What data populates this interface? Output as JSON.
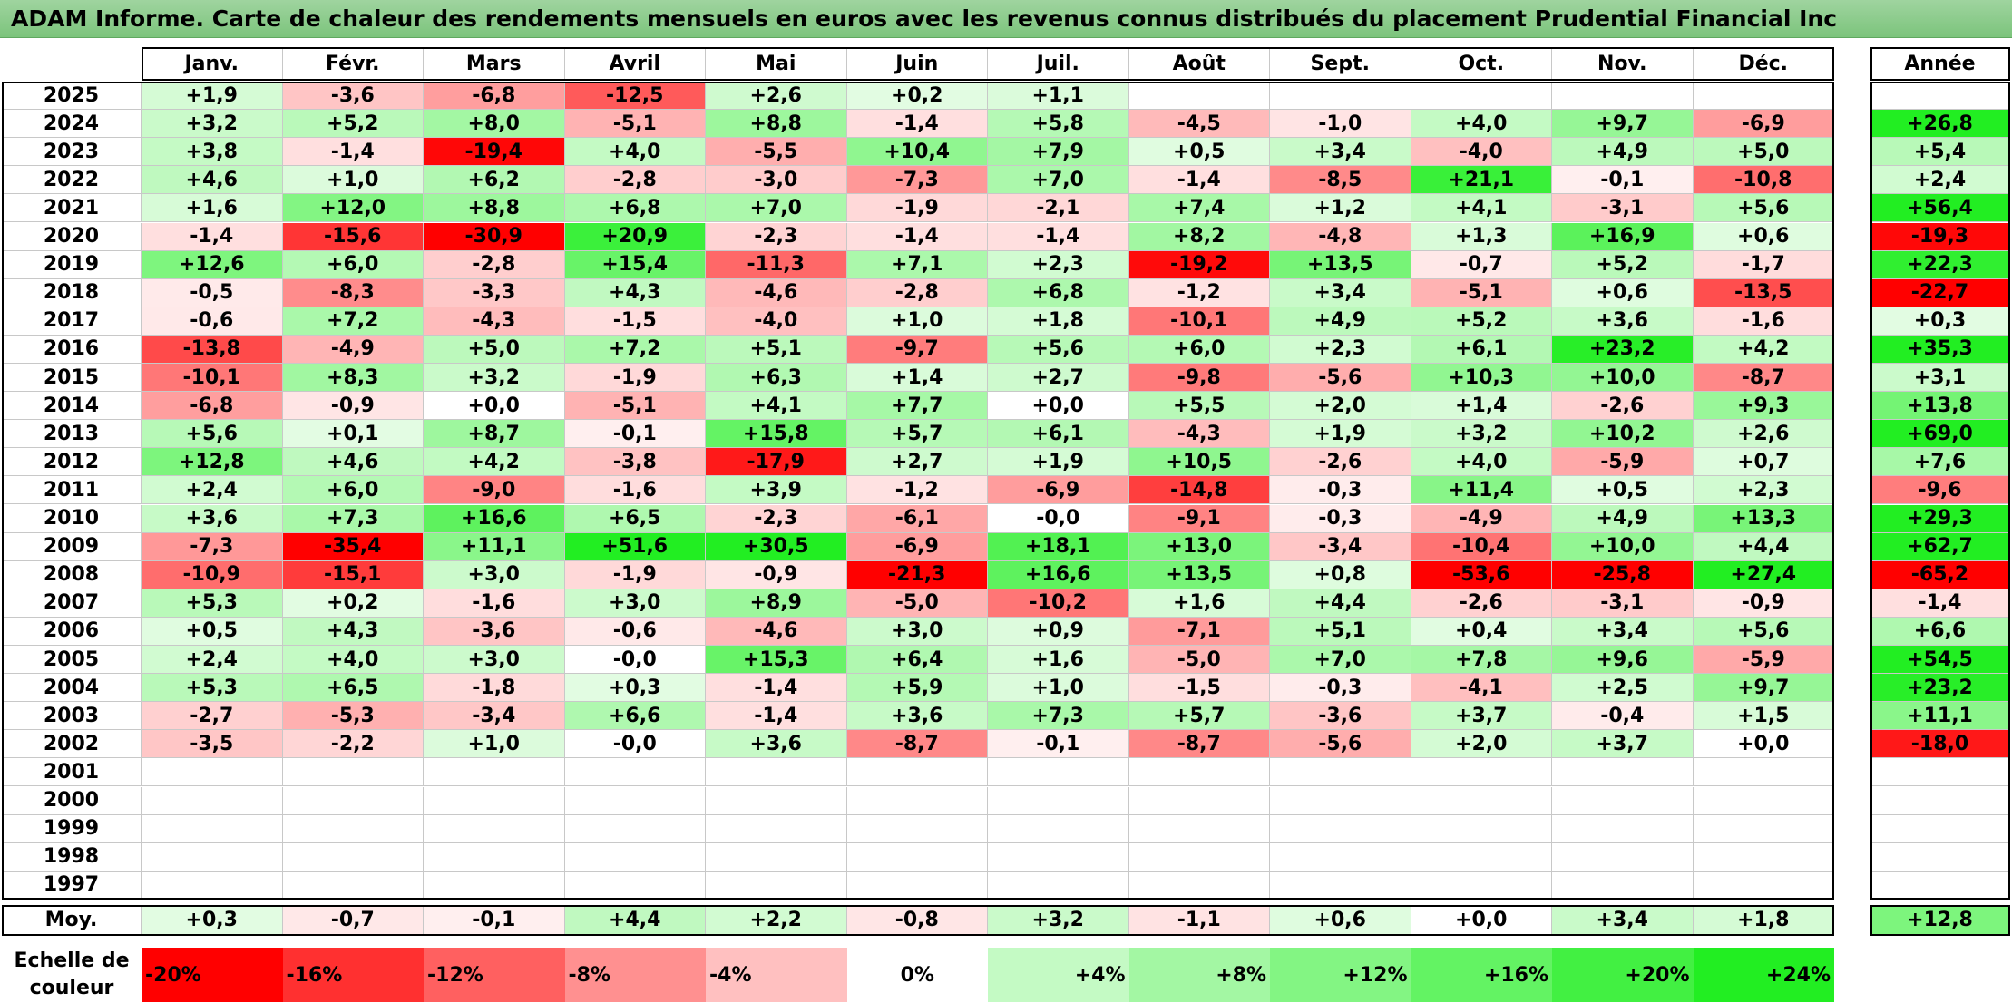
{
  "title": "ADAM Informe. Carte de chaleur des rendements mensuels en euros avec les revenus connus distribués du placement Prudential Financial Inc",
  "months": [
    "Janv.",
    "Févr.",
    "Mars",
    "Avril",
    "Mai",
    "Juin",
    "Juil.",
    "Août",
    "Sept.",
    "Oct.",
    "Nov.",
    "Déc."
  ],
  "year_header": "Année",
  "rows": [
    {
      "year": "2025",
      "values": [
        "+1,9",
        "-3,6",
        "-6,8",
        "-12,5",
        "+2,6",
        "+0,2",
        "+1,1",
        "",
        "",
        "",
        "",
        ""
      ],
      "annual": ""
    },
    {
      "year": "2024",
      "values": [
        "+3,2",
        "+5,2",
        "+8,0",
        "-5,1",
        "+8,8",
        "-1,4",
        "+5,8",
        "-4,5",
        "-1,0",
        "+4,0",
        "+9,7",
        "-6,9"
      ],
      "annual": "+26,8"
    },
    {
      "year": "2023",
      "values": [
        "+3,8",
        "-1,4",
        "-19,4",
        "+4,0",
        "-5,5",
        "+10,4",
        "+7,9",
        "+0,5",
        "+3,4",
        "-4,0",
        "+4,9",
        "+5,0"
      ],
      "annual": "+5,4"
    },
    {
      "year": "2022",
      "values": [
        "+4,6",
        "+1,0",
        "+6,2",
        "-2,8",
        "-3,0",
        "-7,3",
        "+7,0",
        "-1,4",
        "-8,5",
        "+21,1",
        "-0,1",
        "-10,8"
      ],
      "annual": "+2,4"
    },
    {
      "year": "2021",
      "values": [
        "+1,6",
        "+12,0",
        "+8,8",
        "+6,8",
        "+7,0",
        "-1,9",
        "-2,1",
        "+7,4",
        "+1,2",
        "+4,1",
        "-3,1",
        "+5,6"
      ],
      "annual": "+56,4"
    },
    {
      "year": "2020",
      "values": [
        "-1,4",
        "-15,6",
        "-30,9",
        "+20,9",
        "-2,3",
        "-1,4",
        "-1,4",
        "+8,2",
        "-4,8",
        "+1,3",
        "+16,9",
        "+0,6"
      ],
      "annual": "-19,3"
    },
    {
      "year": "2019",
      "values": [
        "+12,6",
        "+6,0",
        "-2,8",
        "+15,4",
        "-11,3",
        "+7,1",
        "+2,3",
        "-19,2",
        "+13,5",
        "-0,7",
        "+5,2",
        "-1,7"
      ],
      "annual": "+22,3"
    },
    {
      "year": "2018",
      "values": [
        "-0,5",
        "-8,3",
        "-3,3",
        "+4,3",
        "-4,6",
        "-2,8",
        "+6,8",
        "-1,2",
        "+3,4",
        "-5,1",
        "+0,6",
        "-13,5"
      ],
      "annual": "-22,7"
    },
    {
      "year": "2017",
      "values": [
        "-0,6",
        "+7,2",
        "-4,3",
        "-1,5",
        "-4,0",
        "+1,0",
        "+1,8",
        "-10,1",
        "+4,9",
        "+5,2",
        "+3,6",
        "-1,6"
      ],
      "annual": "+0,3"
    },
    {
      "year": "2016",
      "values": [
        "-13,8",
        "-4,9",
        "+5,0",
        "+7,2",
        "+5,1",
        "-9,7",
        "+5,6",
        "+6,0",
        "+2,3",
        "+6,1",
        "+23,2",
        "+4,2"
      ],
      "annual": "+35,3"
    },
    {
      "year": "2015",
      "values": [
        "-10,1",
        "+8,3",
        "+3,2",
        "-1,9",
        "+6,3",
        "+1,4",
        "+2,7",
        "-9,8",
        "-5,6",
        "+10,3",
        "+10,0",
        "-8,7"
      ],
      "annual": "+3,1"
    },
    {
      "year": "2014",
      "values": [
        "-6,8",
        "-0,9",
        "+0,0",
        "-5,1",
        "+4,1",
        "+7,7",
        "+0,0",
        "+5,5",
        "+2,0",
        "+1,4",
        "-2,6",
        "+9,3"
      ],
      "annual": "+13,8"
    },
    {
      "year": "2013",
      "values": [
        "+5,6",
        "+0,1",
        "+8,7",
        "-0,1",
        "+15,8",
        "+5,7",
        "+6,1",
        "-4,3",
        "+1,9",
        "+3,2",
        "+10,2",
        "+2,6"
      ],
      "annual": "+69,0"
    },
    {
      "year": "2012",
      "values": [
        "+12,8",
        "+4,6",
        "+4,2",
        "-3,8",
        "-17,9",
        "+2,7",
        "+1,9",
        "+10,5",
        "-2,6",
        "+4,0",
        "-5,9",
        "+0,7"
      ],
      "annual": "+7,6"
    },
    {
      "year": "2011",
      "values": [
        "+2,4",
        "+6,0",
        "-9,0",
        "-1,6",
        "+3,9",
        "-1,2",
        "-6,9",
        "-14,8",
        "-0,3",
        "+11,4",
        "+0,5",
        "+2,3"
      ],
      "annual": "-9,6"
    },
    {
      "year": "2010",
      "values": [
        "+3,6",
        "+7,3",
        "+16,6",
        "+6,5",
        "-2,3",
        "-6,1",
        "-0,0",
        "-9,1",
        "-0,3",
        "-4,9",
        "+4,9",
        "+13,3"
      ],
      "annual": "+29,3"
    },
    {
      "year": "2009",
      "values": [
        "-7,3",
        "-35,4",
        "+11,1",
        "+51,6",
        "+30,5",
        "-6,9",
        "+18,1",
        "+13,0",
        "-3,4",
        "-10,4",
        "+10,0",
        "+4,4"
      ],
      "annual": "+62,7"
    },
    {
      "year": "2008",
      "values": [
        "-10,9",
        "-15,1",
        "+3,0",
        "-1,9",
        "-0,9",
        "-21,3",
        "+16,6",
        "+13,5",
        "+0,8",
        "-53,6",
        "-25,8",
        "+27,4"
      ],
      "annual": "-65,2"
    },
    {
      "year": "2007",
      "values": [
        "+5,3",
        "+0,2",
        "-1,6",
        "+3,0",
        "+8,9",
        "-5,0",
        "-10,2",
        "+1,6",
        "+4,4",
        "-2,6",
        "-3,1",
        "-0,9"
      ],
      "annual": "-1,4"
    },
    {
      "year": "2006",
      "values": [
        "+0,5",
        "+4,3",
        "-3,6",
        "-0,6",
        "-4,6",
        "+3,0",
        "+0,9",
        "-7,1",
        "+5,1",
        "+0,4",
        "+3,4",
        "+5,6"
      ],
      "annual": "+6,6"
    },
    {
      "year": "2005",
      "values": [
        "+2,4",
        "+4,0",
        "+3,0",
        "-0,0",
        "+15,3",
        "+6,4",
        "+1,6",
        "-5,0",
        "+7,0",
        "+7,8",
        "+9,6",
        "-5,9"
      ],
      "annual": "+54,5"
    },
    {
      "year": "2004",
      "values": [
        "+5,3",
        "+6,5",
        "-1,8",
        "+0,3",
        "-1,4",
        "+5,9",
        "+1,0",
        "-1,5",
        "-0,3",
        "-4,1",
        "+2,5",
        "+9,7"
      ],
      "annual": "+23,2"
    },
    {
      "year": "2003",
      "values": [
        "-2,7",
        "-5,3",
        "-3,4",
        "+6,6",
        "-1,4",
        "+3,6",
        "+7,3",
        "+5,7",
        "-3,6",
        "+3,7",
        "-0,4",
        "+1,5"
      ],
      "annual": "+11,1"
    },
    {
      "year": "2002",
      "values": [
        "-3,5",
        "-2,2",
        "+1,0",
        "-0,0",
        "+3,6",
        "-8,7",
        "-0,1",
        "-8,7",
        "-5,6",
        "+2,0",
        "+3,7",
        "+0,0"
      ],
      "annual": "-18,0"
    },
    {
      "year": "2001",
      "values": [
        "",
        "",
        "",
        "",
        "",
        "",
        "",
        "",
        "",
        "",
        "",
        ""
      ],
      "annual": ""
    },
    {
      "year": "2000",
      "values": [
        "",
        "",
        "",
        "",
        "",
        "",
        "",
        "",
        "",
        "",
        "",
        ""
      ],
      "annual": ""
    },
    {
      "year": "1999",
      "values": [
        "",
        "",
        "",
        "",
        "",
        "",
        "",
        "",
        "",
        "",
        "",
        ""
      ],
      "annual": ""
    },
    {
      "year": "1998",
      "values": [
        "",
        "",
        "",
        "",
        "",
        "",
        "",
        "",
        "",
        "",
        "",
        ""
      ],
      "annual": ""
    },
    {
      "year": "1997",
      "values": [
        "",
        "",
        "",
        "",
        "",
        "",
        "",
        "",
        "",
        "",
        "",
        ""
      ],
      "annual": ""
    }
  ],
  "average": {
    "label": "Moy.",
    "values": [
      "+0,3",
      "-0,7",
      "-0,1",
      "+4,4",
      "+2,2",
      "-0,8",
      "+3,2",
      "-1,1",
      "+0,6",
      "+0,0",
      "+3,4",
      "+1,8"
    ],
    "annual": "+12,8"
  },
  "scale": {
    "label": "Echelle de couleur",
    "labels": [
      "-20%",
      "-16%",
      "-12%",
      "-8%",
      "-4%",
      "0%",
      "+4%",
      "+8%",
      "+12%",
      "+16%",
      "+20%",
      "+24%"
    ],
    "values": [
      -20,
      -16,
      -12,
      -8,
      -4,
      0,
      4,
      8,
      12,
      16,
      20,
      24
    ]
  },
  "colors": {
    "negative": "#ff0000",
    "positive": "#22ee22",
    "neutral": "#ffffff"
  },
  "chart_data": {
    "type": "heatmap",
    "title": "ADAM Informe. Carte de chaleur des rendements mensuels en euros avec les revenus connus distribués du placement Prudential Financial Inc",
    "x": [
      "Janv.",
      "Févr.",
      "Mars",
      "Avril",
      "Mai",
      "Juin",
      "Juil.",
      "Août",
      "Sept.",
      "Oct.",
      "Nov.",
      "Déc.",
      "Année"
    ],
    "y": [
      "2025",
      "2024",
      "2023",
      "2022",
      "2021",
      "2020",
      "2019",
      "2018",
      "2017",
      "2016",
      "2015",
      "2014",
      "2013",
      "2012",
      "2011",
      "2010",
      "2009",
      "2008",
      "2007",
      "2006",
      "2005",
      "2004",
      "2003",
      "2002",
      "2001",
      "2000",
      "1999",
      "1998",
      "1997",
      "Moy."
    ],
    "color_scale_range": [
      -20,
      24
    ]
  }
}
